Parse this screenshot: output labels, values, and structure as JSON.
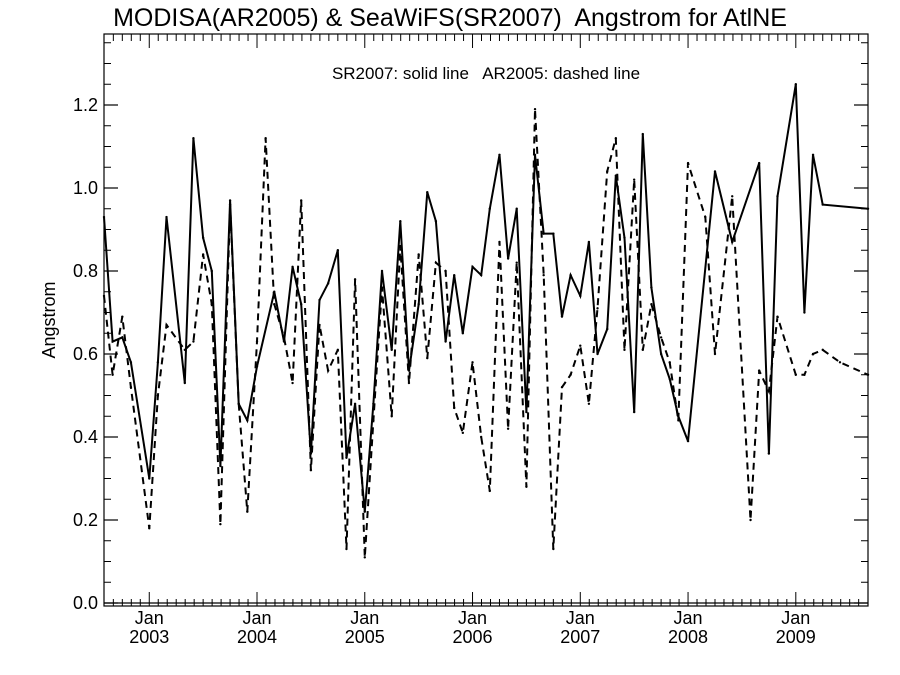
{
  "chart_data": {
    "type": "line",
    "title": "MODISA(AR2005) & SeaWiFS(SR2007)  Angstrom for AtlNE",
    "ylabel": "Angstrom",
    "xlabel": "",
    "annotation": "SR2007: solid line   AR2005: dashed line",
    "ylim": [
      0.0,
      1.38
    ],
    "xlim": [
      2002.58,
      2009.67
    ],
    "grid": false,
    "y_ticks": [
      "0.0",
      "0.2",
      "0.4",
      "0.6",
      "0.8",
      "1.0",
      "1.2"
    ],
    "y_tick_values": [
      0.0,
      0.2,
      0.4,
      0.6,
      0.8,
      1.0,
      1.2
    ],
    "x_ticks": [
      {
        "month": "Jan",
        "year": "2003",
        "value": 2003.0
      },
      {
        "month": "Jan",
        "year": "2004",
        "value": 2004.0
      },
      {
        "month": "Jan",
        "year": "2005",
        "value": 2005.0
      },
      {
        "month": "Jan",
        "year": "2006",
        "value": 2006.0
      },
      {
        "month": "Jan",
        "year": "2007",
        "value": 2007.0
      },
      {
        "month": "Jan",
        "year": "2008",
        "value": 2008.0
      },
      {
        "month": "Jan",
        "year": "2009",
        "value": 2009.0
      }
    ],
    "series": [
      {
        "name": "SR2007",
        "style": "solid",
        "color": "#000000",
        "x": [
          2002.58,
          2002.66,
          2002.75,
          2002.83,
          2003.0,
          2003.08,
          2003.16,
          2003.33,
          2003.41,
          2003.5,
          2003.58,
          2003.66,
          2003.75,
          2003.83,
          2003.91,
          2004.0,
          2004.16,
          2004.25,
          2004.33,
          2004.41,
          2004.5,
          2004.58,
          2004.66,
          2004.75,
          2004.83,
          2004.91,
          2005.0,
          2005.08,
          2005.16,
          2005.25,
          2005.33,
          2005.41,
          2005.5,
          2005.58,
          2005.66,
          2005.75,
          2005.83,
          2005.91,
          2006.0,
          2006.08,
          2006.16,
          2006.25,
          2006.33,
          2006.41,
          2006.5,
          2006.58,
          2006.66,
          2006.75,
          2006.83,
          2006.91,
          2007.0,
          2007.08,
          2007.16,
          2007.25,
          2007.33,
          2007.41,
          2007.5,
          2007.58,
          2007.66,
          2007.75,
          2007.83,
          2007.91,
          2008.0,
          2008.25,
          2008.41,
          2008.66,
          2008.75,
          2008.83,
          2009.0,
          2009.08,
          2009.16,
          2009.25,
          2009.67
        ],
        "values": [
          0.93,
          0.63,
          0.64,
          0.58,
          0.3,
          0.58,
          0.93,
          0.53,
          1.12,
          0.88,
          0.8,
          0.33,
          0.97,
          0.48,
          0.44,
          0.57,
          0.75,
          0.63,
          0.81,
          0.72,
          0.36,
          0.73,
          0.77,
          0.85,
          0.35,
          0.48,
          0.22,
          0.48,
          0.8,
          0.61,
          0.92,
          0.56,
          0.72,
          0.99,
          0.92,
          0.63,
          0.79,
          0.65,
          0.81,
          0.79,
          0.95,
          1.08,
          0.83,
          0.95,
          0.46,
          1.08,
          0.89,
          0.89,
          0.69,
          0.79,
          0.74,
          0.87,
          0.6,
          0.66,
          1.03,
          0.88,
          0.46,
          1.13,
          0.76,
          0.6,
          0.54,
          0.45,
          0.39,
          1.04,
          0.87,
          1.06,
          0.36,
          0.98,
          1.25,
          0.7,
          1.08,
          0.96,
          0.95
        ]
      },
      {
        "name": "AR2005",
        "style": "dashed",
        "color": "#000000",
        "x": [
          2002.58,
          2002.66,
          2002.75,
          2002.83,
          2003.0,
          2003.08,
          2003.16,
          2003.33,
          2003.41,
          2003.5,
          2003.58,
          2003.66,
          2003.75,
          2003.83,
          2003.91,
          2004.0,
          2004.08,
          2004.16,
          2004.25,
          2004.33,
          2004.41,
          2004.5,
          2004.58,
          2004.66,
          2004.75,
          2004.83,
          2004.91,
          2005.0,
          2005.08,
          2005.16,
          2005.25,
          2005.33,
          2005.41,
          2005.5,
          2005.58,
          2005.66,
          2005.75,
          2005.83,
          2005.91,
          2006.0,
          2006.08,
          2006.16,
          2006.25,
          2006.33,
          2006.41,
          2006.5,
          2006.58,
          2006.66,
          2006.75,
          2006.83,
          2006.91,
          2007.0,
          2007.08,
          2007.16,
          2007.25,
          2007.33,
          2007.41,
          2007.5,
          2007.58,
          2007.66,
          2007.75,
          2007.83,
          2007.91,
          2008.0,
          2008.16,
          2008.25,
          2008.41,
          2008.58,
          2008.66,
          2008.75,
          2008.83,
          2009.0,
          2009.08,
          2009.16,
          2009.25,
          2009.41,
          2009.67
        ],
        "values": [
          0.74,
          0.55,
          0.69,
          0.52,
          0.18,
          0.5,
          0.67,
          0.61,
          0.63,
          0.84,
          0.72,
          0.19,
          0.96,
          0.48,
          0.22,
          0.63,
          1.12,
          0.72,
          0.64,
          0.53,
          0.97,
          0.32,
          0.67,
          0.56,
          0.61,
          0.13,
          0.78,
          0.11,
          0.44,
          0.76,
          0.45,
          0.86,
          0.53,
          0.84,
          0.59,
          0.82,
          0.8,
          0.47,
          0.41,
          0.58,
          0.4,
          0.27,
          0.87,
          0.42,
          0.82,
          0.28,
          1.19,
          0.79,
          0.13,
          0.52,
          0.55,
          0.62,
          0.48,
          0.71,
          1.04,
          1.12,
          0.61,
          1.02,
          0.61,
          0.72,
          0.64,
          0.58,
          0.44,
          1.06,
          0.93,
          0.6,
          0.98,
          0.2,
          0.56,
          0.51,
          0.69,
          0.55,
          0.55,
          0.6,
          0.61,
          0.58,
          0.55
        ]
      }
    ]
  }
}
